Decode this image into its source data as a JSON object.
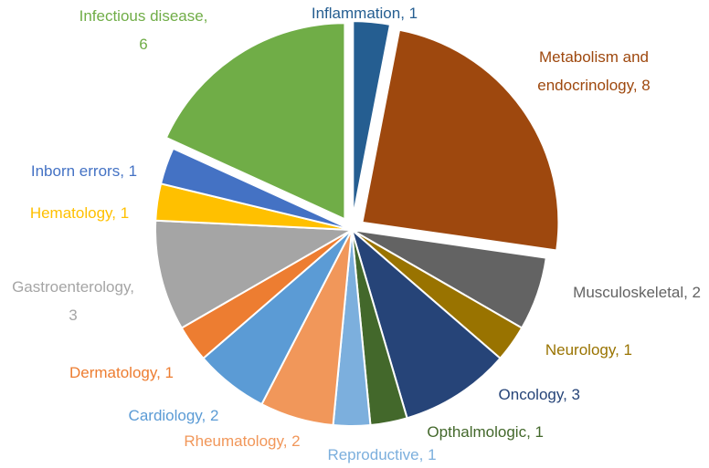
{
  "chart_data": {
    "type": "pie",
    "title": "",
    "categories": [
      "Inflammation",
      "Metabolism and endocrinology",
      "Musculoskeletal",
      "Neurology",
      "Oncology",
      "Opthalmologic",
      "Reproductive",
      "Rheumatology",
      "Cardiology",
      "Dermatology",
      "Gastroenterology",
      "Hematology",
      "Inborn errors",
      "Infectious disease"
    ],
    "values": [
      1,
      8,
      2,
      1,
      3,
      1,
      1,
      2,
      2,
      1,
      3,
      1,
      1,
      6
    ],
    "colors": [
      "#255E91",
      "#9E480E",
      "#636363",
      "#997300",
      "#264478",
      "#43682B",
      "#7CAFDD",
      "#F1975A",
      "#5B9BD5",
      "#ED7D31",
      "#A5A5A5",
      "#FFC000",
      "#4472C4",
      "#70AD47"
    ],
    "exploded": [
      "Inflammation",
      "Metabolism and endocrinology",
      "Infectious disease"
    ],
    "labels": [
      {
        "lines": [
          "Inflammation, 1"
        ]
      },
      {
        "lines": [
          "Metabolism and",
          "endocrinology, 8"
        ]
      },
      {
        "lines": [
          "Musculoskeletal, 2"
        ]
      },
      {
        "lines": [
          "Neurology, 1"
        ]
      },
      {
        "lines": [
          "Oncology, 3"
        ]
      },
      {
        "lines": [
          "Opthalmologic, 1"
        ]
      },
      {
        "lines": [
          "Reproductive, 1"
        ]
      },
      {
        "lines": [
          "Rheumatology, 2"
        ]
      },
      {
        "lines": [
          "Cardiology, 2"
        ]
      },
      {
        "lines": [
          "Dermatology, 1"
        ]
      },
      {
        "lines": [
          "Gastroenterology,",
          "3"
        ]
      },
      {
        "lines": [
          "Hematology, 1"
        ]
      },
      {
        "lines": [
          "Inborn errors, 1"
        ]
      },
      {
        "lines": [
          "Infectious disease,",
          "6"
        ]
      }
    ],
    "legend": "none"
  }
}
